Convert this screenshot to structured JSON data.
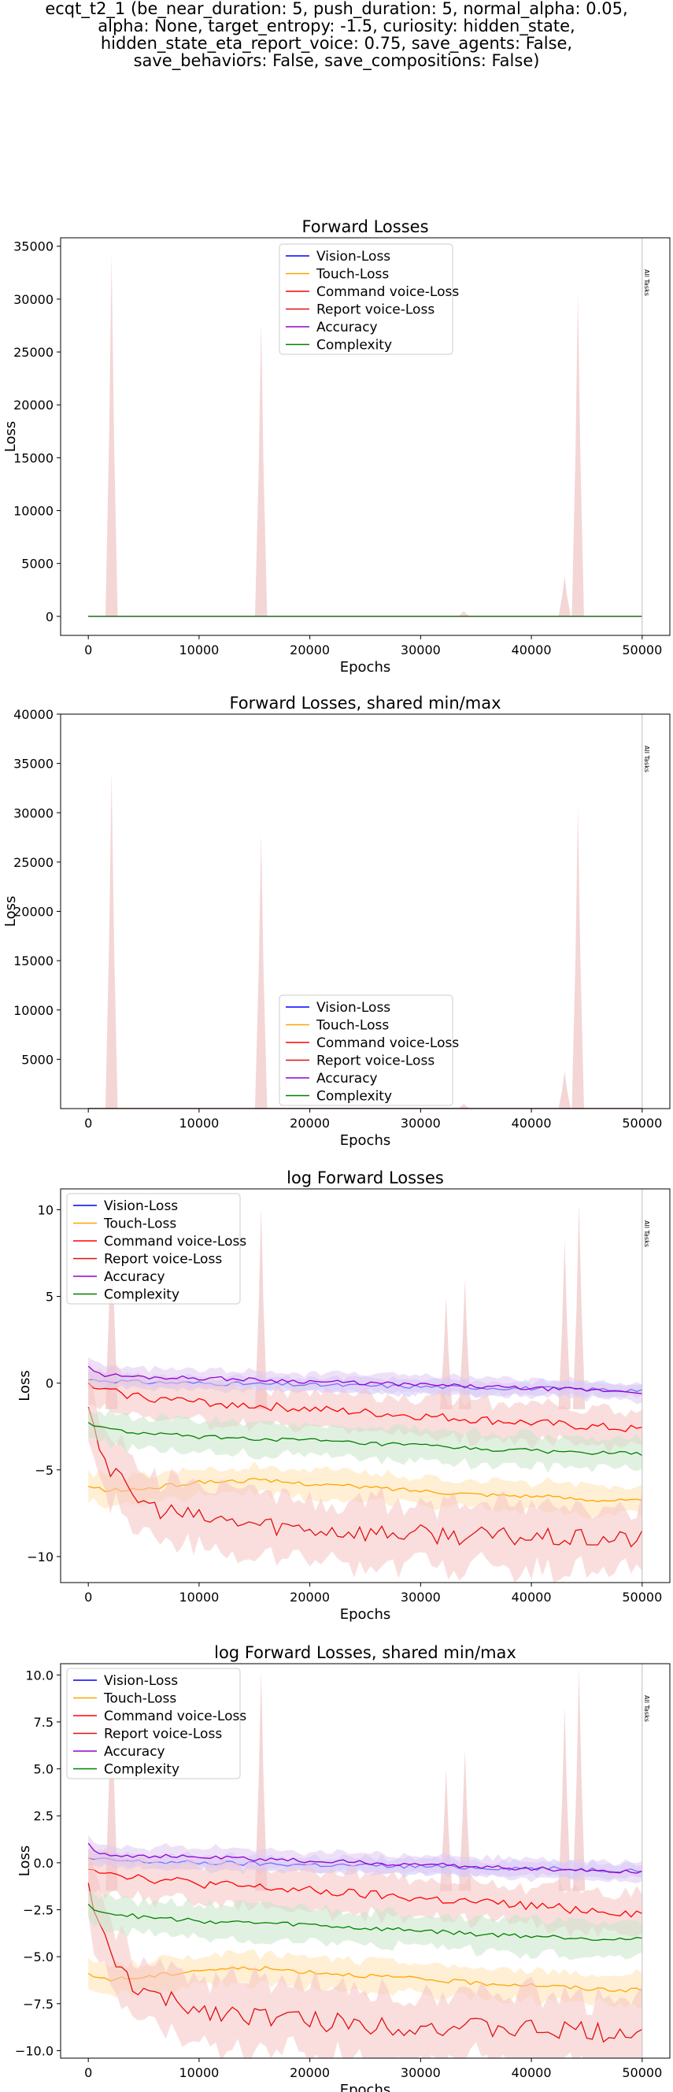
{
  "figure_title": "ecqt_t2_1 (be_near_duration: 5, push_duration: 5, normal_alpha: 0.05,\nalpha: None, target_entropy: -1.5, curiosity: hidden_state,\nhidden_state_eta_report_voice: 0.75, save_agents: False,\nsave_behaviors: False, save_compositions: False)",
  "colors": {
    "vision": "#0000ff",
    "touch": "#ffa500",
    "command": "#ff0000",
    "report": "#e01010",
    "accuracy": "#9400d3",
    "complexity": "#008000",
    "band_red": "#f5c2c2",
    "band_orange": "#ffe2b0",
    "band_green": "#c8e6c8",
    "band_blue": "#c8c8ff",
    "band_purple": "#e0c8f0"
  },
  "chart_data": [
    {
      "type": "line",
      "title": "Forward Losses",
      "xlabel": "Epochs",
      "ylabel": "Loss",
      "xlim": [
        -2500,
        52500
      ],
      "ylim": [
        -1800,
        35800
      ],
      "xticks": [
        0,
        10000,
        20000,
        30000,
        40000,
        50000
      ],
      "yticks": [
        0,
        5000,
        10000,
        15000,
        20000,
        25000,
        30000,
        35000
      ],
      "legend": "top-center",
      "vline": {
        "x": 50000,
        "label": "All Tasks"
      },
      "series": [
        {
          "name": "Vision-Loss",
          "key": "vision"
        },
        {
          "name": "Touch-Loss",
          "key": "touch"
        },
        {
          "name": "Command voice-Loss",
          "key": "command"
        },
        {
          "name": "Report voice-Loss",
          "key": "report"
        },
        {
          "name": "Accuracy",
          "key": "accuracy"
        },
        {
          "name": "Complexity",
          "key": "complexity"
        }
      ],
      "spikes": [
        {
          "x": 2100,
          "y": 34200
        },
        {
          "x": 15600,
          "y": 27800
        },
        {
          "x": 33900,
          "y": 500
        },
        {
          "x": 43000,
          "y": 3800
        },
        {
          "x": 44200,
          "y": 30500
        }
      ]
    },
    {
      "type": "line",
      "title": "Forward Losses, shared min/max",
      "xlabel": "Epochs",
      "ylabel": "Loss",
      "xlim": [
        -2500,
        52500
      ],
      "ylim": [
        0,
        40000
      ],
      "xticks": [
        0,
        10000,
        20000,
        30000,
        40000,
        50000
      ],
      "yticks": [
        5000,
        10000,
        15000,
        20000,
        25000,
        30000,
        35000,
        40000
      ],
      "legend": "bottom-center",
      "vline": {
        "x": 50000,
        "label": "All Tasks"
      },
      "series": [
        {
          "name": "Vision-Loss",
          "key": "vision"
        },
        {
          "name": "Touch-Loss",
          "key": "touch"
        },
        {
          "name": "Command voice-Loss",
          "key": "command"
        },
        {
          "name": "Report voice-Loss",
          "key": "report"
        },
        {
          "name": "Accuracy",
          "key": "accuracy"
        },
        {
          "name": "Complexity",
          "key": "complexity"
        }
      ],
      "spikes": [
        {
          "x": 2100,
          "y": 34200
        },
        {
          "x": 15600,
          "y": 27800
        },
        {
          "x": 33900,
          "y": 500
        },
        {
          "x": 43000,
          "y": 3800
        },
        {
          "x": 44200,
          "y": 30500
        }
      ]
    },
    {
      "type": "line",
      "title": "log Forward Losses",
      "xlabel": "Epochs",
      "ylabel": "Loss",
      "xlim": [
        -2500,
        52500
      ],
      "ylim": [
        -11.5,
        11.2
      ],
      "xticks": [
        0,
        10000,
        20000,
        30000,
        40000,
        50000
      ],
      "yticks": [
        -10,
        -5,
        0,
        5,
        10
      ],
      "ytick_labels": [
        "−10",
        "−5",
        "0",
        "5",
        "10"
      ],
      "legend": "top-left",
      "vline": {
        "x": 50000,
        "label": "All Tasks"
      },
      "series": [
        {
          "name": "Vision-Loss",
          "key": "vision",
          "x": [
            0,
            5000,
            10000,
            15000,
            20000,
            25000,
            30000,
            35000,
            40000,
            45000,
            50000
          ],
          "y": [
            0.2,
            0.05,
            0.0,
            -0.05,
            -0.1,
            -0.15,
            -0.2,
            -0.25,
            -0.3,
            -0.35,
            -0.4
          ],
          "band": 0.4
        },
        {
          "name": "Touch-Loss",
          "key": "touch",
          "x": [
            0,
            2000,
            5000,
            10000,
            15000,
            20000,
            25000,
            30000,
            35000,
            40000,
            45000,
            50000
          ],
          "y": [
            -6.0,
            -6.2,
            -6.1,
            -5.7,
            -5.6,
            -5.8,
            -6.0,
            -6.2,
            -6.4,
            -6.5,
            -6.7,
            -6.8
          ],
          "band": 0.8
        },
        {
          "name": "Command voice-Loss",
          "key": "command",
          "x": [
            0,
            2000,
            5000,
            10000,
            15000,
            20000,
            25000,
            30000,
            35000,
            40000,
            45000,
            50000
          ],
          "y": [
            -0.2,
            -0.5,
            -0.8,
            -1.1,
            -1.3,
            -1.5,
            -1.7,
            -1.9,
            -2.1,
            -2.3,
            -2.5,
            -2.7
          ],
          "band": 1.1
        },
        {
          "name": "Report voice-Loss",
          "key": "report",
          "x": [
            0,
            1000,
            2000,
            4000,
            6000,
            10000,
            15000,
            20000,
            25000,
            30000,
            35000,
            40000,
            45000,
            50000
          ],
          "y": [
            -1.0,
            -3.5,
            -5.0,
            -6.5,
            -7.2,
            -7.8,
            -8.1,
            -8.4,
            -8.6,
            -8.7,
            -8.8,
            -8.9,
            -9.0,
            -9.0
          ],
          "band": 1.8
        },
        {
          "name": "Accuracy",
          "key": "accuracy",
          "x": [
            0,
            1000,
            5000,
            10000,
            15000,
            20000,
            25000,
            30000,
            35000,
            40000,
            45000,
            50000
          ],
          "y": [
            1.0,
            0.5,
            0.35,
            0.3,
            0.2,
            0.1,
            0.0,
            -0.1,
            -0.2,
            -0.3,
            -0.4,
            -0.5
          ],
          "band": 0.5
        },
        {
          "name": "Complexity",
          "key": "complexity",
          "x": [
            0,
            2000,
            5000,
            10000,
            15000,
            20000,
            25000,
            30000,
            35000,
            40000,
            45000,
            50000
          ],
          "y": [
            -2.3,
            -2.7,
            -2.9,
            -3.1,
            -3.2,
            -3.3,
            -3.5,
            -3.6,
            -3.8,
            -3.9,
            -4.0,
            -4.1
          ],
          "band": 0.9
        }
      ],
      "spikes": [
        {
          "x": 2100,
          "y": 10.5
        },
        {
          "x": 15600,
          "y": 10.2
        },
        {
          "x": 32300,
          "y": 5.0
        },
        {
          "x": 34000,
          "y": 6.0
        },
        {
          "x": 43000,
          "y": 8.3
        },
        {
          "x": 44300,
          "y": 10.4
        }
      ]
    },
    {
      "type": "line",
      "title": "log Forward Losses, shared min/max",
      "xlabel": "Epochs",
      "ylabel": "Loss",
      "xlim": [
        -2500,
        52500
      ],
      "ylim": [
        -10.4,
        10.6
      ],
      "xticks": [
        0,
        10000,
        20000,
        30000,
        40000,
        50000
      ],
      "yticks": [
        -10,
        -7.5,
        -5,
        -2.5,
        0,
        2.5,
        5,
        7.5,
        10
      ],
      "ytick_labels": [
        "−10.0",
        "−7.5",
        "−5.0",
        "−2.5",
        "0.0",
        "2.5",
        "5.0",
        "7.5",
        "10.0"
      ],
      "legend": "top-left",
      "vline": {
        "x": 50000,
        "label": "All Tasks"
      },
      "series": [
        {
          "name": "Vision-Loss",
          "key": "vision",
          "x": [
            0,
            5000,
            10000,
            15000,
            20000,
            25000,
            30000,
            35000,
            40000,
            45000,
            50000
          ],
          "y": [
            0.2,
            0.05,
            0.0,
            -0.05,
            -0.1,
            -0.15,
            -0.2,
            -0.25,
            -0.3,
            -0.35,
            -0.4
          ],
          "band": 0.4
        },
        {
          "name": "Touch-Loss",
          "key": "touch",
          "x": [
            0,
            2000,
            5000,
            10000,
            15000,
            20000,
            25000,
            30000,
            35000,
            40000,
            45000,
            50000
          ],
          "y": [
            -6.0,
            -6.2,
            -6.1,
            -5.7,
            -5.6,
            -5.8,
            -6.0,
            -6.2,
            -6.4,
            -6.5,
            -6.7,
            -6.8
          ],
          "band": 0.8
        },
        {
          "name": "Command voice-Loss",
          "key": "command",
          "x": [
            0,
            2000,
            5000,
            10000,
            15000,
            20000,
            25000,
            30000,
            35000,
            40000,
            45000,
            50000
          ],
          "y": [
            -0.2,
            -0.5,
            -0.8,
            -1.1,
            -1.3,
            -1.5,
            -1.7,
            -1.9,
            -2.1,
            -2.3,
            -2.5,
            -2.7
          ],
          "band": 1.1
        },
        {
          "name": "Report voice-Loss",
          "key": "report",
          "x": [
            0,
            1000,
            2000,
            4000,
            6000,
            10000,
            15000,
            20000,
            25000,
            30000,
            35000,
            40000,
            45000,
            50000
          ],
          "y": [
            -1.0,
            -3.5,
            -5.0,
            -6.5,
            -7.2,
            -7.8,
            -8.1,
            -8.4,
            -8.6,
            -8.7,
            -8.8,
            -8.9,
            -9.0,
            -9.0
          ],
          "band": 1.8
        },
        {
          "name": "Accuracy",
          "key": "accuracy",
          "x": [
            0,
            1000,
            5000,
            10000,
            15000,
            20000,
            25000,
            30000,
            35000,
            40000,
            45000,
            50000
          ],
          "y": [
            1.0,
            0.5,
            0.35,
            0.3,
            0.2,
            0.1,
            0.0,
            -0.1,
            -0.2,
            -0.3,
            -0.4,
            -0.5
          ],
          "band": 0.5
        },
        {
          "name": "Complexity",
          "key": "complexity",
          "x": [
            0,
            2000,
            5000,
            10000,
            15000,
            20000,
            25000,
            30000,
            35000,
            40000,
            45000,
            50000
          ],
          "y": [
            -2.3,
            -2.7,
            -2.9,
            -3.1,
            -3.2,
            -3.3,
            -3.5,
            -3.6,
            -3.8,
            -3.9,
            -4.0,
            -4.1
          ],
          "band": 0.9
        }
      ],
      "spikes": [
        {
          "x": 2100,
          "y": 10.4
        },
        {
          "x": 15600,
          "y": 10.2
        },
        {
          "x": 32300,
          "y": 5.0
        },
        {
          "x": 34000,
          "y": 6.0
        },
        {
          "x": 43000,
          "y": 8.3
        },
        {
          "x": 44300,
          "y": 10.4
        }
      ]
    }
  ]
}
